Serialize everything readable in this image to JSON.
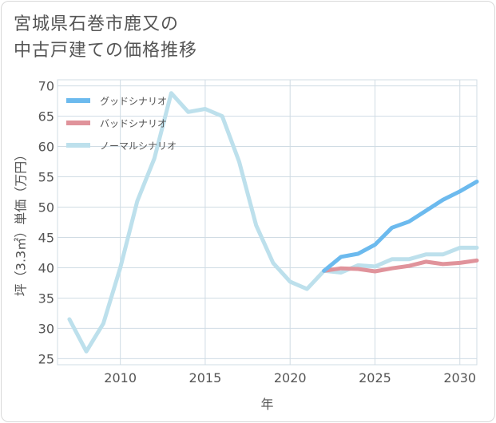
{
  "title": "宮城県石巻市鹿又の\n中古戸建ての価格推移",
  "chart_data": {
    "type": "line",
    "title": "宮城県石巻市鹿又の中古戸建ての価格推移",
    "xlabel": "年",
    "ylabel": "坪（3.3㎡）単価（万円）",
    "xlim": [
      2006.3,
      2031
    ],
    "ylim": [
      24,
      71
    ],
    "x_ticks": [
      2010,
      2015,
      2020,
      2025,
      2030
    ],
    "y_ticks": [
      25,
      30,
      35,
      40,
      45,
      50,
      55,
      60,
      65,
      70
    ],
    "grid": true,
    "legend_position": "top-left",
    "series": [
      {
        "name": "グッドシナリオ",
        "color": "#6cbaee",
        "x": [
          2022,
          2023,
          2024,
          2025,
          2026,
          2027,
          2028,
          2029,
          2030,
          2031
        ],
        "y": [
          39.5,
          41.8,
          42.3,
          43.8,
          46.6,
          47.6,
          49.4,
          51.2,
          52.6,
          54.2
        ]
      },
      {
        "name": "バッドシナリオ",
        "color": "#e0939b",
        "x": [
          2022,
          2023,
          2024,
          2025,
          2026,
          2027,
          2028,
          2029,
          2030,
          2031
        ],
        "y": [
          39.5,
          39.9,
          39.8,
          39.4,
          39.9,
          40.3,
          41.0,
          40.6,
          40.8,
          41.2
        ]
      },
      {
        "name": "ノーマルシナリオ",
        "color": "#bde0ec",
        "x": [
          2007,
          2008,
          2009,
          2010,
          2011,
          2012,
          2013,
          2014,
          2015,
          2016,
          2017,
          2018,
          2019,
          2020,
          2021,
          2022,
          2023,
          2024,
          2025,
          2026,
          2027,
          2028,
          2029,
          2030,
          2031
        ],
        "y": [
          31.5,
          26.2,
          30.8,
          40.0,
          51.0,
          58.0,
          68.8,
          65.7,
          66.2,
          65.0,
          57.5,
          47.0,
          40.8,
          37.7,
          36.5,
          39.5,
          39.2,
          40.4,
          40.2,
          41.4,
          41.4,
          42.2,
          42.2,
          43.3,
          43.3
        ]
      }
    ]
  }
}
